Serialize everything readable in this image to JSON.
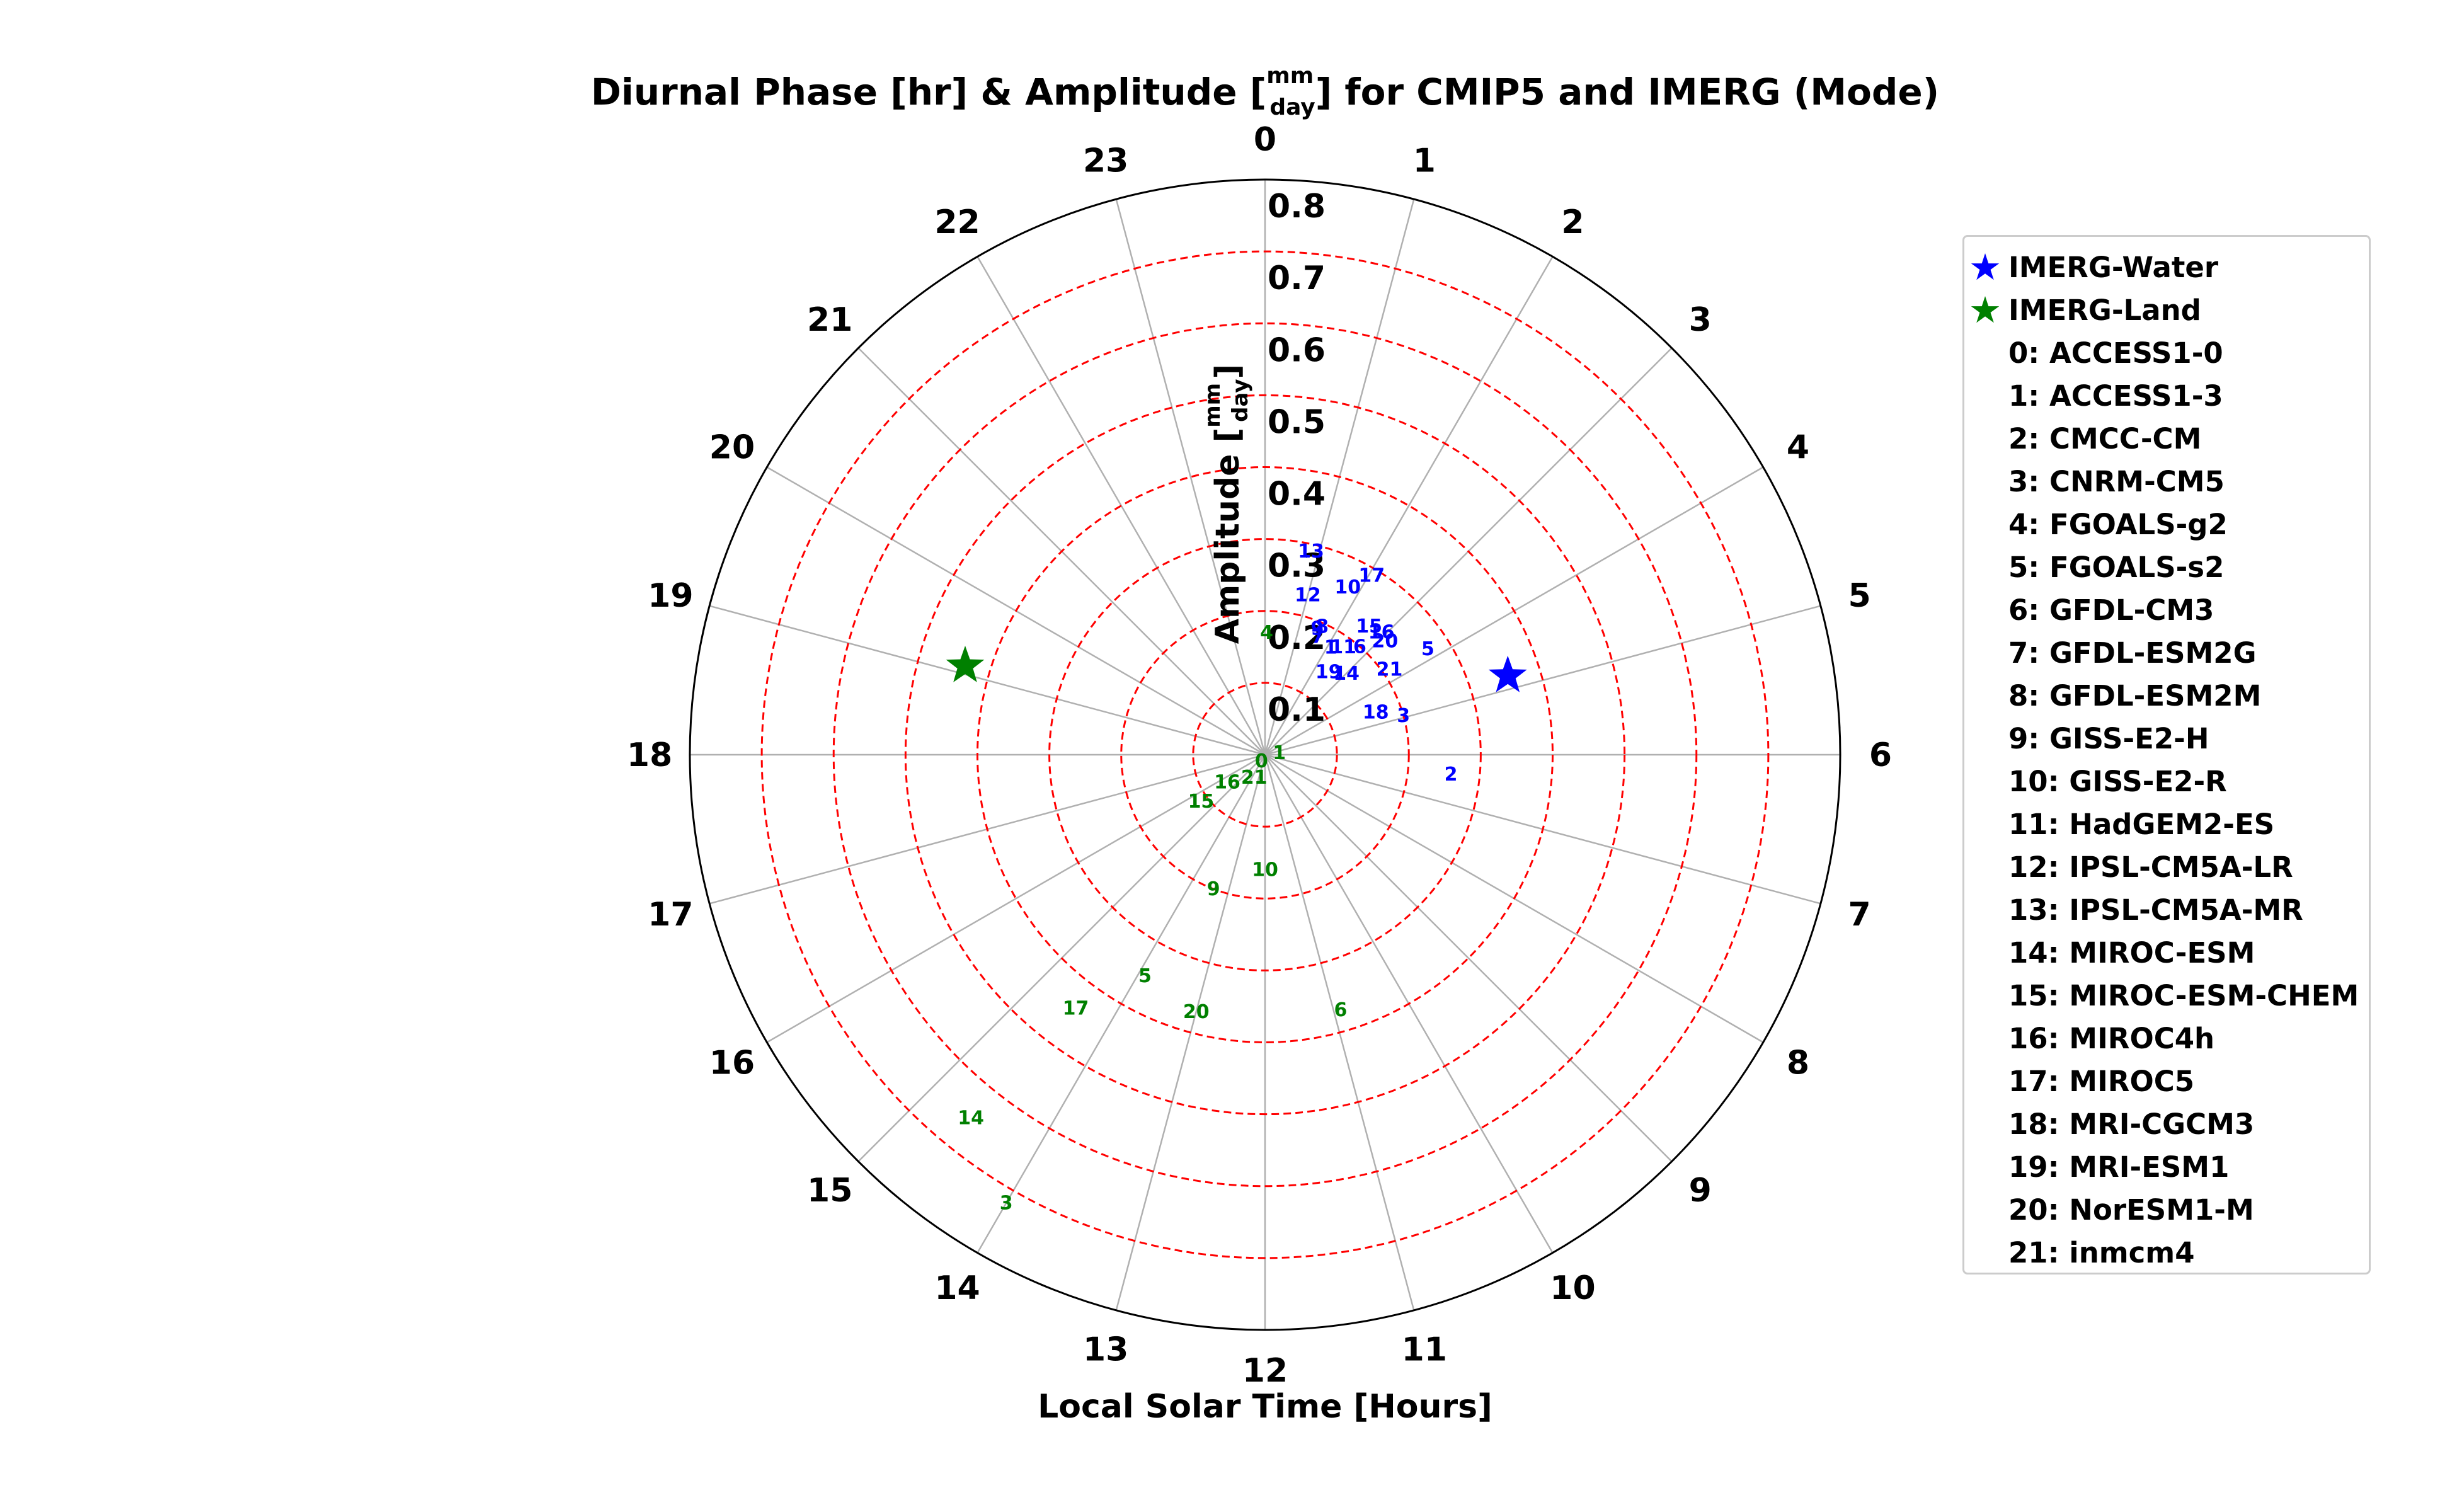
{
  "chart_data": {
    "type": "polar-scatter",
    "title": {
      "pre": "Diurnal Phase [hr] & Amplitude [",
      "frac_num": "mm",
      "frac_den": "day",
      "post": "] for CMIP5 and IMERG (Mode)"
    },
    "xlabel": "Local Solar Time [Hours]",
    "ylabel": {
      "pre": "Amplitude [",
      "frac_num": "mm",
      "frac_den": "day",
      "post": "]"
    },
    "theta_ticks": [
      "0",
      "1",
      "2",
      "3",
      "4",
      "5",
      "6",
      "7",
      "8",
      "9",
      "10",
      "11",
      "12",
      "13",
      "14",
      "15",
      "16",
      "17",
      "18",
      "19",
      "20",
      "21",
      "22",
      "23"
    ],
    "r_ticks": [
      "0.1",
      "0.2",
      "0.3",
      "0.4",
      "0.5",
      "0.6",
      "0.7",
      "0.8"
    ],
    "rlim": [
      0,
      0.8
    ],
    "theta_direction": "clockwise",
    "theta_zero": "top",
    "grid": true,
    "legend_placement": "right",
    "colors": {
      "water": "#0000ff",
      "land": "#008000",
      "ring": "#ff0000",
      "spoke": "#b0b0b0",
      "frame": "#000000"
    },
    "series": [
      {
        "name": "IMERG-Water",
        "marker": "star",
        "color": "#0000ff",
        "points": [
          {
            "hour": 4.8,
            "amp": 0.355
          }
        ]
      },
      {
        "name": "IMERG-Land",
        "marker": "star",
        "color": "#008000",
        "points": [
          {
            "hour": 19.1,
            "amp": 0.435
          }
        ]
      }
    ],
    "model_points": {
      "water": [
        {
          "label": "13",
          "hour": 0.85,
          "amp": 0.29
        },
        {
          "label": "10",
          "hour": 1.75,
          "amp": 0.26
        },
        {
          "label": "17",
          "hour": 2.05,
          "amp": 0.29
        },
        {
          "label": "12",
          "hour": 1.0,
          "amp": 0.23
        },
        {
          "label": "15",
          "hour": 2.6,
          "amp": 0.23
        },
        {
          "label": "16",
          "hour": 2.9,
          "amp": 0.235
        },
        {
          "label": "9",
          "hour": 1.5,
          "amp": 0.19
        },
        {
          "label": "8",
          "hour": 1.6,
          "amp": 0.195
        },
        {
          "label": "7",
          "hour": 1.6,
          "amp": 0.18
        },
        {
          "label": "1",
          "hour": 2.1,
          "amp": 0.175
        },
        {
          "label": "11",
          "hour": 2.4,
          "amp": 0.185
        },
        {
          "label": "6",
          "hour": 2.75,
          "amp": 0.2
        },
        {
          "label": "20",
          "hour": 3.1,
          "amp": 0.23
        },
        {
          "label": "5",
          "hour": 3.8,
          "amp": 0.27
        },
        {
          "label": "19",
          "hour": 2.5,
          "amp": 0.145
        },
        {
          "label": "14",
          "hour": 3.0,
          "amp": 0.16
        },
        {
          "label": "21",
          "hour": 3.7,
          "amp": 0.21
        },
        {
          "label": "18",
          "hour": 4.6,
          "amp": 0.165
        },
        {
          "label": "3",
          "hour": 4.95,
          "amp": 0.2
        },
        {
          "label": "2",
          "hour": 6.4,
          "amp": 0.26
        }
      ],
      "land": [
        {
          "label": "4",
          "hour": 0.05,
          "amp": 0.17
        },
        {
          "label": "0",
          "hour": 14.0,
          "amp": 0.01
        },
        {
          "label": "1",
          "hour": 5.5,
          "amp": 0.02
        },
        {
          "label": "21",
          "hour": 13.7,
          "amp": 0.035
        },
        {
          "label": "16",
          "hour": 15.6,
          "amp": 0.065
        },
        {
          "label": "15",
          "hour": 15.6,
          "amp": 0.11
        },
        {
          "label": "10",
          "hour": 12.0,
          "amp": 0.16
        },
        {
          "label": "9",
          "hour": 13.4,
          "amp": 0.2
        },
        {
          "label": "5",
          "hour": 13.9,
          "amp": 0.35
        },
        {
          "label": "20",
          "hour": 13.0,
          "amp": 0.37
        },
        {
          "label": "6",
          "hour": 10.9,
          "amp": 0.37
        },
        {
          "label": "17",
          "hour": 14.45,
          "amp": 0.44
        },
        {
          "label": "14",
          "hour": 14.6,
          "amp": 0.65
        },
        {
          "label": "3",
          "hour": 14.0,
          "amp": 0.72
        }
      ]
    },
    "legend_entries": [
      "0: ACCESS1-0",
      "1: ACCESS1-3",
      "2: CMCC-CM",
      "3: CNRM-CM5",
      "4: FGOALS-g2",
      "5: FGOALS-s2",
      "6: GFDL-CM3",
      "7: GFDL-ESM2G",
      "8: GFDL-ESM2M",
      "9: GISS-E2-H",
      "10: GISS-E2-R",
      "11: HadGEM2-ES",
      "12: IPSL-CM5A-LR",
      "13: IPSL-CM5A-MR",
      "14: MIROC-ESM",
      "15: MIROC-ESM-CHEM",
      "16: MIROC4h",
      "17: MIROC5",
      "18: MRI-CGCM3",
      "19: MRI-ESM1",
      "20: NorESM1-M",
      "21: inmcm4"
    ]
  }
}
